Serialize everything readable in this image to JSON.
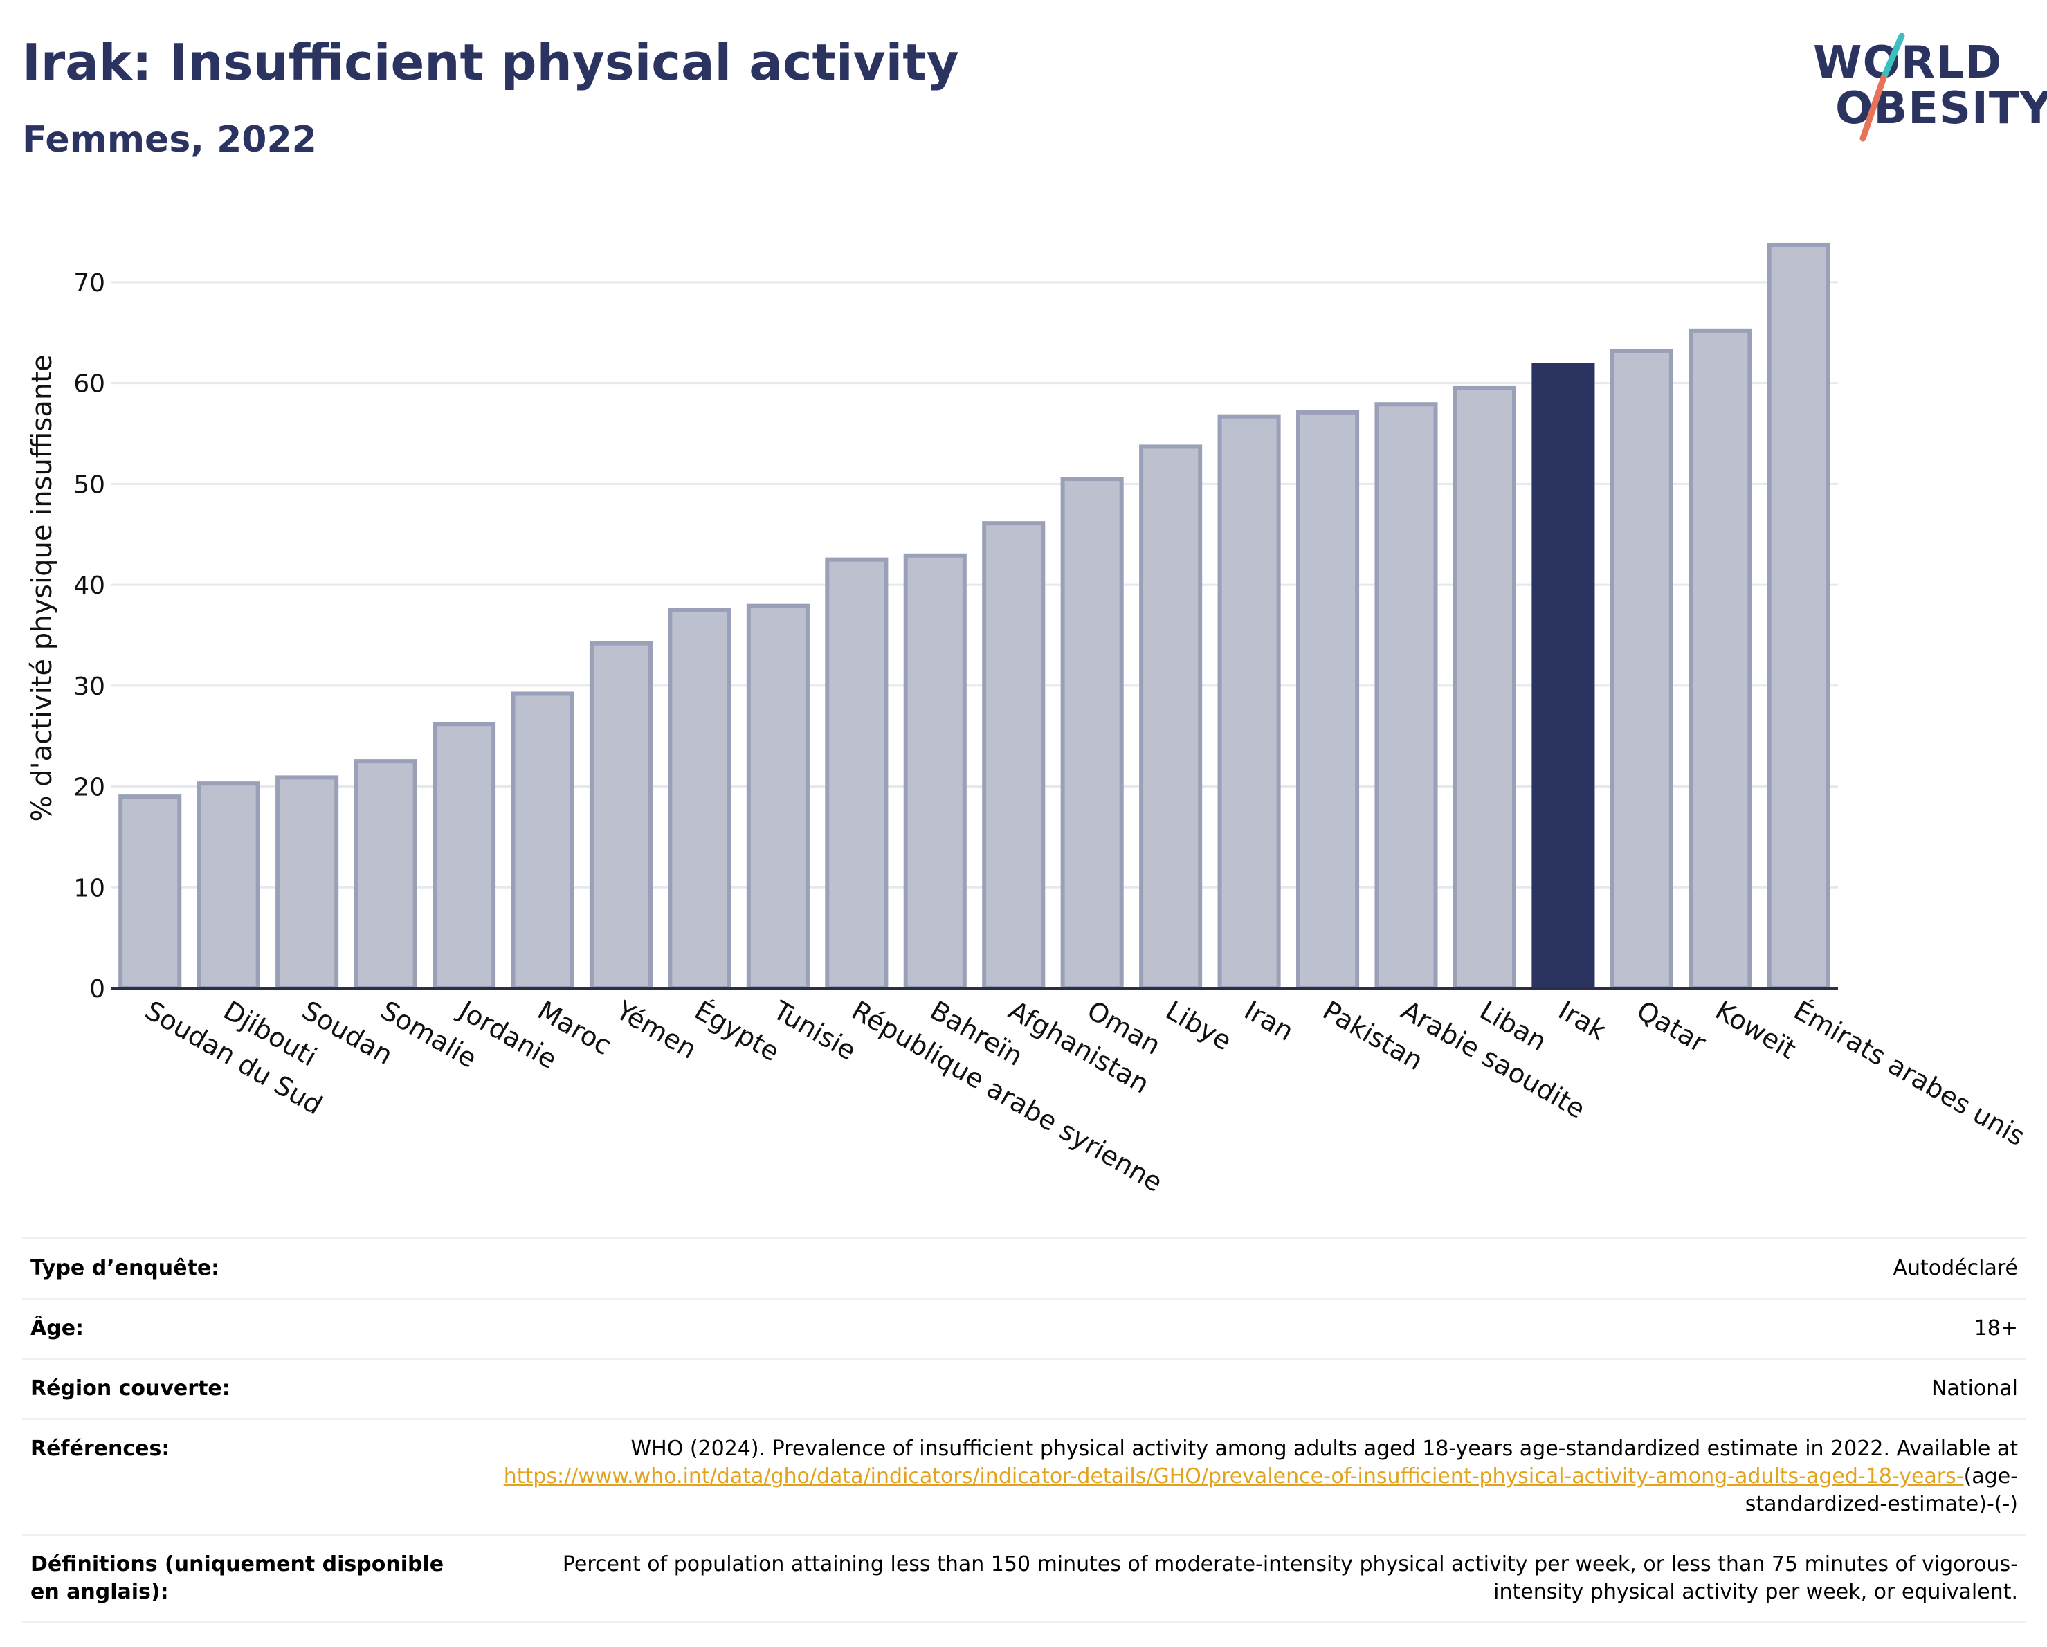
{
  "header": {
    "title": "Irak: Insufficient physical activity",
    "subtitle": "Femmes, 2022"
  },
  "logo": {
    "line1": "WORLD",
    "line2": "OBESITY"
  },
  "colors": {
    "highlight": "#2b3460",
    "bar": "#bcc0cf",
    "bar_stroke": "#9aa0b8",
    "title": "#2b3460",
    "link": "#e2a21b"
  },
  "chart_data": {
    "type": "bar",
    "title": "Irak: Insufficient physical activity",
    "subtitle": "Femmes, 2022",
    "xlabel": "",
    "ylabel": "% d'activité physique insuffisante",
    "ylim": [
      0,
      75
    ],
    "yticks": [
      0,
      10,
      20,
      30,
      40,
      50,
      60,
      70
    ],
    "grid": true,
    "highlight": "Irak",
    "categories": [
      "Soudan du Sud",
      "Djibouti",
      "Soudan",
      "Somalie",
      "Jordanie",
      "Maroc",
      "Yémen",
      "Égypte",
      "Tunisie",
      "République arabe syrienne",
      "Bahreïn",
      "Afghanistan",
      "Oman",
      "Libye",
      "Iran",
      "Pakistan",
      "Arabie saoudite",
      "Liban",
      "Irak",
      "Qatar",
      "Koweït",
      "Émirats arabes unis"
    ],
    "values": [
      19.0,
      20.3,
      20.9,
      22.5,
      26.2,
      29.2,
      34.2,
      37.5,
      37.9,
      42.5,
      42.9,
      46.1,
      50.5,
      53.7,
      56.7,
      57.1,
      57.9,
      59.5,
      61.8,
      63.2,
      65.2,
      73.7
    ]
  },
  "info": {
    "survey_label": "Type d’enquête:",
    "survey_value": "Autodéclaré",
    "age_label": "Âge:",
    "age_value": "18+",
    "region_label": "Région couverte:",
    "region_value": "National",
    "refs_label": "Références:",
    "refs_text": "WHO (2024). Prevalence of insufficient physical activity among adults aged 18-years age-standardized estimate in 2022. Available at",
    "refs_link": "https://www.who.int/data/gho/data/indicators/indicator-details/GHO/prevalence-of-insufficient-physical-activity-among-adults-aged-18-years-",
    "refs_suffix": "(age-standardized-estimate)-(-)",
    "defs_label": "Définitions (uniquement disponible en anglais):",
    "defs_value": "Percent of population attaining less than 150 minutes of moderate-intensity physical activity per week, or less than 75 minutes of vigorous-intensity physical activity per week, or equivalent."
  }
}
